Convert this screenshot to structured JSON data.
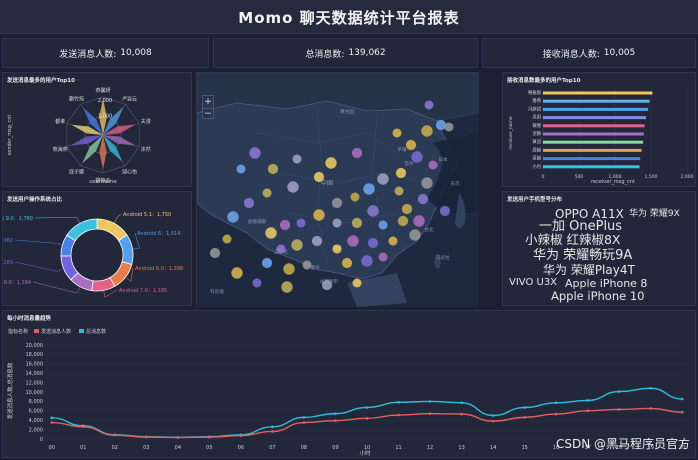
{
  "header": {
    "title": "Momo 聊天数据统计平台报表"
  },
  "kpis": [
    {
      "label": "发送消息人数:",
      "value": "10,008"
    },
    {
      "label": "总消息数:",
      "value": "139,062"
    },
    {
      "label": "接收消息人数:",
      "value": "10,005"
    }
  ],
  "radar": {
    "title": "发送消息最多的用户Top10",
    "ylabel": "sender_msg_cnt",
    "xlabel": "username",
    "ticks": [
      "1,000",
      "2,000"
    ],
    "names": [
      "燕馨妍",
      "卢昱云",
      "夫漫",
      "沐然",
      "邹心怡",
      "黎静云",
      "寇子娜",
      "熊海燕",
      "都孝",
      "蒯竹筠"
    ]
  },
  "donut": {
    "title": "发送用户操作系统占比",
    "slices": [
      {
        "label": "Android 5.1",
        "value": 1750,
        "display": "Android 5.1：1,750",
        "color": "#f0c75e"
      },
      {
        "label": "Android 6",
        "value": 1514,
        "display": "Android 6：1,514",
        "color": "#4fa0ee"
      },
      {
        "label": "Android 6.0",
        "value": 1398,
        "display": "Android 6.0：1,398",
        "color": "#ea7b4b"
      },
      {
        "label": "Android 7.0",
        "value": 1185,
        "display": "Android 7.0：1,185",
        "color": "#e36387"
      },
      {
        "label": "Android 8.0",
        "value": 1184,
        "display": "Android 8.0：1,184",
        "color": "#a86ec4"
      },
      {
        "label": "IOS 10.0",
        "value": 1289,
        "display": "IOS 10.0：1,289",
        "color": "#7064e3"
      },
      {
        "label": "IOS 12.0",
        "value": 1082,
        "display": "IOS 12.0：1,082",
        "color": "#4a7ee8"
      },
      {
        "label": "IOS 9.0",
        "value": 1760,
        "display": "IOS 9.0：1,760",
        "color": "#37c3df"
      }
    ]
  },
  "map": {
    "zoom_in": "+",
    "zoom_out": "−",
    "labels": [
      "蒙古国",
      "中国",
      "日本",
      "首尔",
      "平壤",
      "东京",
      "台北",
      "马尼拉",
      "曼谷",
      "河内",
      "胡志明市",
      "科伦坡",
      "加德满都",
      "孟加拉"
    ]
  },
  "receivers": {
    "title": "接收消息数最多的用户Top10",
    "ylabel": "receiver_name",
    "xlabel": "receiver_msg_cnt",
    "names": [
      "畅振国",
      "春燕",
      "冯庭斌",
      "凤阳",
      "微晓",
      "泥鞅",
      "黄冠",
      "周越",
      "袁越",
      "小月"
    ],
    "values": [
      1520,
      1480,
      1460,
      1430,
      1410,
      1400,
      1390,
      1370,
      1350,
      1340
    ],
    "colors": [
      "#f0c75e",
      "#5fb3e8",
      "#4fa0ee",
      "#7b8cea",
      "#e36387",
      "#a86ec4",
      "#8ad4a3",
      "#ea9b4b",
      "#4a7ee8",
      "#37c3df"
    ],
    "ticks": [
      "0",
      "500",
      "1,000",
      "1,500",
      "2,000"
    ],
    "xmax": 2000
  },
  "wordcloud": {
    "title": "发送用户手机型号分布",
    "words": [
      "OPPO A11X",
      "华为 荣耀9X",
      "一加 OnePlus",
      "小辣椒 红辣椒8X",
      "华为 荣耀畅玩9A",
      "华为 荣耀Play4T",
      "VIVO U3X",
      "Apple iPhone 8",
      "Apple iPhone 10"
    ],
    "colors": [
      "#c584e8",
      "#4fd1c5",
      "#6fa8f0",
      "#f0c75e",
      "#f5e27a",
      "#8fd48a",
      "#6fa8f0",
      "#e36387",
      "#f0c75e"
    ]
  },
  "hourly": {
    "title": "每小时消息量趋势",
    "legend_prefix": "指标名称",
    "series_names": [
      "发送消息人数",
      "总消息数"
    ],
    "series_colors": [
      "#e36060",
      "#2ebedd"
    ],
    "ylabel": "发送消息人数,总消息数",
    "xlabel": "小时",
    "yticks": [
      "0",
      "2,000",
      "4,000",
      "6,000",
      "8,000",
      "10,000",
      "12,000",
      "14,000",
      "16,000",
      "18,000",
      "20,000"
    ],
    "xticks": [
      "00",
      "01",
      "02",
      "03",
      "04",
      "05",
      "06",
      "07",
      "08",
      "09",
      "10",
      "11",
      "12",
      "13",
      "14",
      "15",
      "16",
      "17",
      "18",
      "19",
      "20"
    ],
    "ymax": 20000
  },
  "chart_data": [
    {
      "type": "radar",
      "title": "发送消息最多的用户Top10",
      "xlabel": "username",
      "ylabel": "sender_msg_cnt",
      "categories": [
        "燕馨妍",
        "卢昱云",
        "夫漫",
        "沐然",
        "邹心怡",
        "黎静云",
        "寇子娜",
        "熊海燕",
        "都孝",
        "蒯竹筠"
      ],
      "values": [
        1900,
        1850,
        1800,
        1800,
        1750,
        1800,
        1850,
        1800,
        1750,
        1800
      ],
      "ylim": [
        0,
        2000
      ]
    },
    {
      "type": "pie",
      "title": "发送用户操作系统占比",
      "categories": [
        "Android 5.1",
        "Android 6",
        "Android 6.0",
        "Android 7.0",
        "Android 8.0",
        "IOS 10.0",
        "IOS 12.0",
        "IOS 9.0"
      ],
      "values": [
        1750,
        1514,
        1398,
        1185,
        1184,
        1289,
        1082,
        1760
      ]
    },
    {
      "type": "bar",
      "title": "接收消息数最多的用户Top10",
      "categories": [
        "畅振国",
        "春燕",
        "冯庭斌",
        "凤阳",
        "微晓",
        "泥鞅",
        "黄冠",
        "周越",
        "袁越",
        "小月"
      ],
      "values": [
        1520,
        1480,
        1460,
        1430,
        1410,
        1400,
        1390,
        1370,
        1350,
        1340
      ],
      "xlabel": "receiver_msg_cnt",
      "ylabel": "receiver_name",
      "xlim": [
        0,
        2000
      ]
    },
    {
      "type": "line",
      "title": "每小时消息量趋势",
      "xlabel": "小时",
      "ylabel": "发送消息人数,总消息数",
      "x": [
        "00",
        "01",
        "02",
        "03",
        "04",
        "05",
        "06",
        "07",
        "08",
        "09",
        "10",
        "11",
        "12",
        "13",
        "14",
        "15",
        "16",
        "17",
        "18",
        "19",
        "20"
      ],
      "series": [
        {
          "name": "发送消息人数",
          "values": [
            3500,
            2600,
            800,
            400,
            300,
            400,
            700,
            1600,
            3500,
            3900,
            4400,
            5100,
            5400,
            5300,
            3800,
            4600,
            5300,
            6000,
            6300,
            6500,
            5700
          ]
        },
        {
          "name": "总消息数",
          "values": [
            4500,
            2800,
            900,
            500,
            350,
            500,
            900,
            2600,
            4600,
            5400,
            6700,
            7800,
            8000,
            7700,
            5000,
            6700,
            7700,
            8200,
            10100,
            10800,
            8500
          ]
        }
      ],
      "ylim": [
        0,
        20000
      ]
    }
  ]
}
